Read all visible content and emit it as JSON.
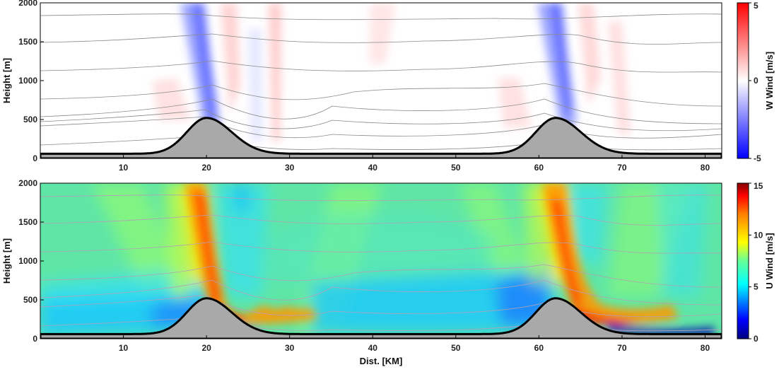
{
  "chart_data": [
    {
      "type": "heatmap",
      "ylabel": "Height [m]",
      "xlim": [
        0,
        82
      ],
      "ylim": [
        0,
        2000
      ],
      "xticks": [
        10,
        20,
        30,
        40,
        50,
        60,
        70,
        80
      ],
      "yticks": [
        0,
        500,
        1000,
        1500,
        2000
      ],
      "colorbar": {
        "label": "W Wind [m/s]",
        "ticks": [
          5,
          0,
          -5
        ],
        "range": [
          -5,
          5
        ],
        "colormap": "blue-white-red"
      },
      "terrain": {
        "baseline": 60,
        "peaks": [
          {
            "x": 20,
            "height": 520
          },
          {
            "x": 62,
            "height": 520
          }
        ]
      }
    },
    {
      "type": "heatmap",
      "xlabel": "Dist. [KM]",
      "ylabel": "Height [m]",
      "xlim": [
        0,
        82
      ],
      "ylim": [
        0,
        2000
      ],
      "xticks": [
        10,
        20,
        30,
        40,
        50,
        60,
        70,
        80
      ],
      "yticks": [
        0,
        500,
        1000,
        1500,
        2000
      ],
      "colorbar": {
        "label": "U Wind [m/s]",
        "ticks": [
          15,
          10,
          5,
          0
        ],
        "range": [
          0,
          15
        ],
        "colormap": "jet"
      },
      "terrain": {
        "baseline": 60,
        "peaks": [
          {
            "x": 20,
            "height": 520
          },
          {
            "x": 62,
            "height": 520
          }
        ]
      }
    }
  ],
  "colors": {
    "terrain_fill": "#a9a9a9",
    "terrain_edge": "#000000",
    "contour": "#8a8a8a",
    "w_positive": "#ff0000",
    "w_negative": "#0000ff",
    "u_background": "#5fe6a6"
  }
}
